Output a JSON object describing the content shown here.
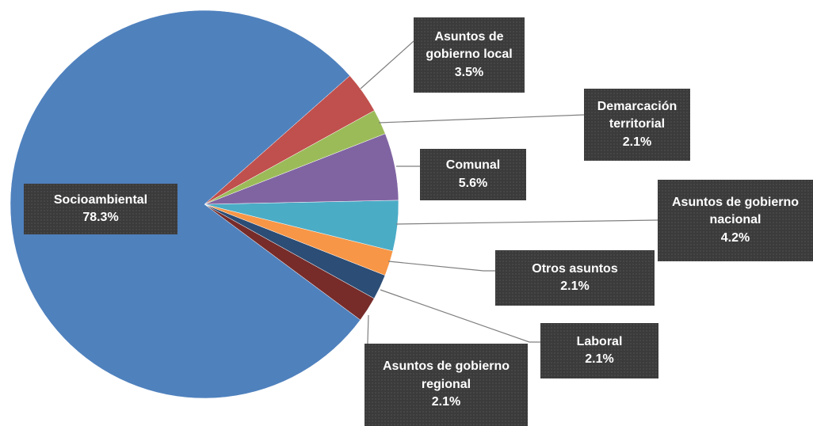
{
  "chart_data": {
    "type": "pie",
    "categories": [
      "Socioambiental",
      "Asuntos de gobierno local",
      "Demarcación territorial",
      "Comunal",
      "Asuntos de gobierno nacional",
      "Otros asuntos",
      "Laboral",
      "Asuntos de gobierno regional"
    ],
    "values": [
      78.3,
      3.5,
      2.1,
      5.6,
      4.2,
      2.1,
      2.1,
      2.1
    ],
    "value_labels": [
      "78.3%",
      "3.5%",
      "2.1%",
      "5.6%",
      "4.2%",
      "2.1%",
      "2.1%",
      "2.1%"
    ],
    "colors": [
      "#4f81bd",
      "#c0504d",
      "#9bbb59",
      "#8064a2",
      "#4bacc6",
      "#f79646",
      "#2c4d75",
      "#772c2a"
    ]
  }
}
